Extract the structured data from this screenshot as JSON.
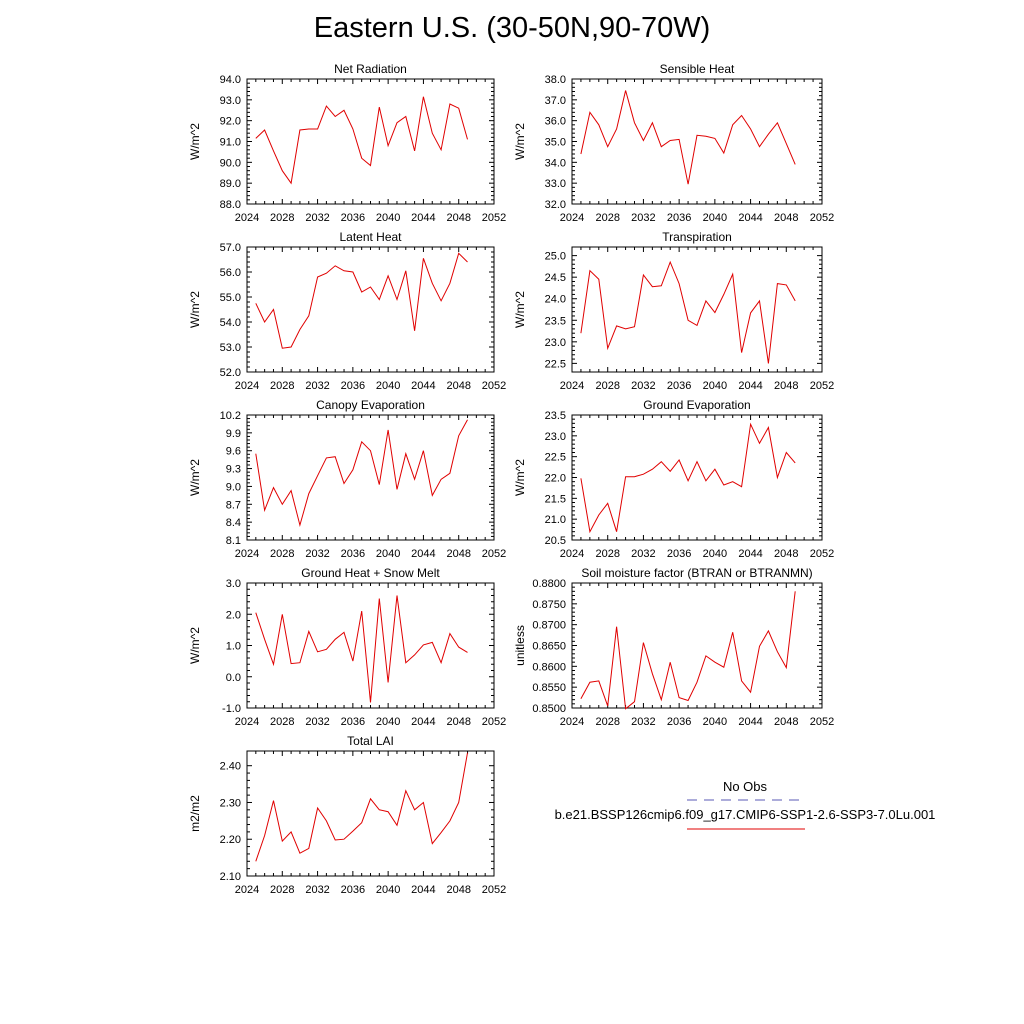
{
  "title": "Eastern U.S. (30-50N,90-70W)",
  "legend": {
    "obs_label": "No Obs",
    "obs_color": "#5a5ab4",
    "case_label": "b.e21.BSSP126cmip6.f09_g17.CMIP6-SSP1-2.6-SSP3-7.0Lu.001",
    "case_color": "#e00000"
  },
  "chart_data": [
    {
      "type": "line",
      "title": "Net Radiation",
      "ylabel": "W/m^2",
      "xlim": [
        2024,
        2052
      ],
      "ylim": [
        88.0,
        94.0
      ],
      "xticks": [
        "2024",
        "2028",
        "2032",
        "2036",
        "2040",
        "2044",
        "2048",
        "2052"
      ],
      "yticks": [
        "88.0",
        "89.0",
        "90.0",
        "91.0",
        "92.0",
        "93.0",
        "94.0"
      ],
      "color": "#e00000",
      "x": [
        2025,
        2026,
        2027,
        2028,
        2029,
        2030,
        2031,
        2032,
        2033,
        2034,
        2035,
        2036,
        2037,
        2038,
        2039,
        2040,
        2041,
        2042,
        2043,
        2044,
        2045,
        2046,
        2047,
        2048,
        2049
      ],
      "y": [
        91.15,
        91.55,
        90.55,
        89.6,
        89.0,
        91.55,
        91.6,
        91.6,
        92.7,
        92.2,
        92.5,
        91.6,
        90.2,
        89.85,
        92.65,
        90.8,
        91.9,
        92.2,
        90.55,
        93.15,
        91.4,
        90.6,
        92.8,
        92.6,
        91.1
      ]
    },
    {
      "type": "line",
      "title": "Sensible Heat",
      "ylabel": "W/m^2",
      "xlim": [
        2024,
        2052
      ],
      "ylim": [
        32.0,
        38.0
      ],
      "xticks": [
        "2024",
        "2028",
        "2032",
        "2036",
        "2040",
        "2044",
        "2048",
        "2052"
      ],
      "yticks": [
        "32.0",
        "33.0",
        "34.0",
        "35.0",
        "36.0",
        "37.0",
        "38.0"
      ],
      "color": "#e00000",
      "x": [
        2025,
        2026,
        2027,
        2028,
        2029,
        2030,
        2031,
        2032,
        2033,
        2034,
        2035,
        2036,
        2037,
        2038,
        2039,
        2040,
        2041,
        2042,
        2043,
        2044,
        2045,
        2046,
        2047,
        2048,
        2049
      ],
      "y": [
        34.4,
        36.4,
        35.8,
        34.75,
        35.6,
        37.45,
        35.9,
        35.05,
        35.9,
        34.75,
        35.05,
        35.1,
        32.95,
        35.3,
        35.25,
        35.15,
        34.45,
        35.8,
        36.25,
        35.6,
        34.75,
        35.35,
        35.9,
        34.9,
        33.9
      ]
    },
    {
      "type": "line",
      "title": "Latent Heat",
      "ylabel": "W/m^2",
      "xlim": [
        2024,
        2052
      ],
      "ylim": [
        52.0,
        57.0
      ],
      "xticks": [
        "2024",
        "2028",
        "2032",
        "2036",
        "2040",
        "2044",
        "2048",
        "2052"
      ],
      "yticks": [
        "52.0",
        "53.0",
        "54.0",
        "55.0",
        "56.0",
        "57.0"
      ],
      "color": "#e00000",
      "x": [
        2025,
        2026,
        2027,
        2028,
        2029,
        2030,
        2031,
        2032,
        2033,
        2034,
        2035,
        2036,
        2037,
        2038,
        2039,
        2040,
        2041,
        2042,
        2043,
        2044,
        2045,
        2046,
        2047,
        2048,
        2049
      ],
      "y": [
        54.75,
        54.0,
        54.5,
        52.95,
        53.0,
        53.7,
        54.25,
        55.8,
        55.95,
        56.25,
        56.05,
        56.0,
        55.2,
        55.4,
        54.9,
        55.85,
        54.9,
        56.05,
        53.65,
        56.55,
        55.55,
        54.85,
        55.55,
        56.75,
        56.4
      ]
    },
    {
      "type": "line",
      "title": "Transpiration",
      "ylabel": "W/m^2",
      "xlim": [
        2024,
        2052
      ],
      "ylim": [
        22.3,
        25.2
      ],
      "xticks": [
        "2024",
        "2028",
        "2032",
        "2036",
        "2040",
        "2044",
        "2048",
        "2052"
      ],
      "yticks": [
        "22.5",
        "23.0",
        "23.5",
        "24.0",
        "24.5",
        "25.0"
      ],
      "color": "#e00000",
      "x": [
        2025,
        2026,
        2027,
        2028,
        2029,
        2030,
        2031,
        2032,
        2033,
        2034,
        2035,
        2036,
        2037,
        2038,
        2039,
        2040,
        2041,
        2042,
        2043,
        2044,
        2045,
        2046,
        2047,
        2048,
        2049
      ],
      "y": [
        23.2,
        24.65,
        24.45,
        22.85,
        23.37,
        23.3,
        23.35,
        24.55,
        24.28,
        24.3,
        24.85,
        24.35,
        23.5,
        23.38,
        23.95,
        23.68,
        24.1,
        24.57,
        22.75,
        23.67,
        23.95,
        22.5,
        24.35,
        24.32,
        23.95
      ]
    },
    {
      "type": "line",
      "title": "Canopy Evaporation",
      "ylabel": "W/m^2",
      "xlim": [
        2024,
        2052
      ],
      "ylim": [
        8.1,
        10.2
      ],
      "xticks": [
        "2024",
        "2028",
        "2032",
        "2036",
        "2040",
        "2044",
        "2048",
        "2052"
      ],
      "yticks": [
        "8.1",
        "8.4",
        "8.7",
        "9.0",
        "9.3",
        "9.6",
        "9.9",
        "10.2"
      ],
      "color": "#e00000",
      "x": [
        2025,
        2026,
        2027,
        2028,
        2029,
        2030,
        2031,
        2032,
        2033,
        2034,
        2035,
        2036,
        2037,
        2038,
        2039,
        2040,
        2041,
        2042,
        2043,
        2044,
        2045,
        2046,
        2047,
        2048,
        2049
      ],
      "y": [
        9.55,
        8.6,
        8.98,
        8.7,
        8.93,
        8.35,
        8.88,
        9.18,
        9.48,
        9.5,
        9.05,
        9.28,
        9.75,
        9.6,
        9.03,
        9.95,
        8.95,
        9.55,
        9.12,
        9.6,
        8.85,
        9.12,
        9.22,
        9.85,
        10.12
      ]
    },
    {
      "type": "line",
      "title": "Ground Evaporation",
      "ylabel": "W/m^2",
      "xlim": [
        2024,
        2052
      ],
      "ylim": [
        20.5,
        23.5
      ],
      "xticks": [
        "2024",
        "2028",
        "2032",
        "2036",
        "2040",
        "2044",
        "2048",
        "2052"
      ],
      "yticks": [
        "20.5",
        "21.0",
        "21.5",
        "22.0",
        "22.5",
        "23.0",
        "23.5"
      ],
      "color": "#e00000",
      "x": [
        2025,
        2026,
        2027,
        2028,
        2029,
        2030,
        2031,
        2032,
        2033,
        2034,
        2035,
        2036,
        2037,
        2038,
        2039,
        2040,
        2041,
        2042,
        2043,
        2044,
        2045,
        2046,
        2047,
        2048,
        2049
      ],
      "y": [
        21.98,
        20.7,
        21.1,
        21.38,
        20.7,
        22.02,
        22.02,
        22.08,
        22.2,
        22.38,
        22.15,
        22.42,
        21.92,
        22.38,
        21.92,
        22.2,
        21.82,
        21.9,
        21.78,
        23.28,
        22.82,
        23.2,
        22.0,
        22.6,
        22.35
      ]
    },
    {
      "type": "line",
      "title": "Ground Heat + Snow Melt",
      "ylabel": "W/m^2",
      "xlim": [
        2024,
        2052
      ],
      "ylim": [
        -1.0,
        3.0
      ],
      "xticks": [
        "2024",
        "2028",
        "2032",
        "2036",
        "2040",
        "2044",
        "2048",
        "2052"
      ],
      "yticks": [
        "-1.0",
        "0.0",
        "1.0",
        "2.0",
        "3.0"
      ],
      "color": "#e00000",
      "x": [
        2025,
        2026,
        2027,
        2028,
        2029,
        2030,
        2031,
        2032,
        2033,
        2034,
        2035,
        2036,
        2037,
        2038,
        2039,
        2040,
        2041,
        2042,
        2043,
        2044,
        2045,
        2046,
        2047,
        2048,
        2049
      ],
      "y": [
        2.05,
        1.2,
        0.4,
        2.0,
        0.42,
        0.45,
        1.45,
        0.8,
        0.88,
        1.2,
        1.42,
        0.5,
        2.1,
        -0.82,
        2.5,
        -0.18,
        2.6,
        0.45,
        0.7,
        1.02,
        1.1,
        0.45,
        1.38,
        0.95,
        0.78
      ]
    },
    {
      "type": "line",
      "title": "Soil moisture factor (BTRAN or BTRANMN)",
      "ylabel": "unitless",
      "xlim": [
        2024,
        2052
      ],
      "ylim": [
        0.85,
        0.88
      ],
      "xticks": [
        "2024",
        "2028",
        "2032",
        "2036",
        "2040",
        "2044",
        "2048",
        "2052"
      ],
      "yticks": [
        "0.8500",
        "0.8550",
        "0.8600",
        "0.8650",
        "0.8700",
        "0.8750",
        "0.8800"
      ],
      "color": "#e00000",
      "x": [
        2025,
        2026,
        2027,
        2028,
        2029,
        2030,
        2031,
        2032,
        2033,
        2034,
        2035,
        2036,
        2037,
        2038,
        2039,
        2040,
        2041,
        2042,
        2043,
        2044,
        2045,
        2046,
        2047,
        2048,
        2049
      ],
      "y": [
        0.8522,
        0.8562,
        0.8565,
        0.8505,
        0.8695,
        0.8498,
        0.8515,
        0.8657,
        0.8582,
        0.852,
        0.861,
        0.8525,
        0.8518,
        0.8562,
        0.8625,
        0.861,
        0.8598,
        0.8682,
        0.8565,
        0.8538,
        0.8648,
        0.8685,
        0.8635,
        0.8597,
        0.878
      ]
    },
    {
      "type": "line",
      "title": "Total LAI",
      "ylabel": "m2/m2",
      "xlim": [
        2024,
        2052
      ],
      "ylim": [
        2.1,
        2.44
      ],
      "xticks": [
        "2024",
        "2028",
        "2032",
        "2036",
        "2040",
        "2044",
        "2048",
        "2052"
      ],
      "yticks": [
        "2.10",
        "2.20",
        "2.30",
        "2.40"
      ],
      "color": "#e00000",
      "x": [
        2025,
        2026,
        2027,
        2028,
        2029,
        2030,
        2031,
        2032,
        2033,
        2034,
        2035,
        2036,
        2037,
        2038,
        2039,
        2040,
        2041,
        2042,
        2043,
        2044,
        2045,
        2046,
        2047,
        2048,
        2049
      ],
      "y": [
        2.14,
        2.21,
        2.305,
        2.195,
        2.22,
        2.162,
        2.175,
        2.285,
        2.25,
        2.198,
        2.2,
        2.222,
        2.245,
        2.31,
        2.28,
        2.275,
        2.238,
        2.332,
        2.28,
        2.3,
        2.188,
        2.218,
        2.25,
        2.3,
        2.435
      ]
    }
  ]
}
